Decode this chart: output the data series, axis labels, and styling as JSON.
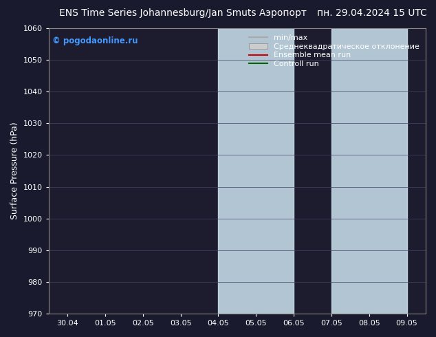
{
  "title_left": "ENS Time Series Johannesburg/Jan Smuts Аэропорт",
  "title_right": "пн. 29.04.2024 15 UTC",
  "ylabel": "Surface Pressure (hPa)",
  "copyright": "© pogodaonline.ru",
  "ylim": [
    970,
    1060
  ],
  "yticks": [
    970,
    980,
    990,
    1000,
    1010,
    1020,
    1030,
    1040,
    1050,
    1060
  ],
  "xtick_labels": [
    "30.04",
    "01.05",
    "02.05",
    "03.05",
    "04.05",
    "05.05",
    "06.05",
    "07.05",
    "08.05",
    "09.05"
  ],
  "shade_bands": [
    {
      "xstart": 4,
      "xend": 6
    },
    {
      "xstart": 7,
      "xend": 9
    }
  ],
  "shade_color": "#cde4f0",
  "legend_entries": [
    {
      "label": "min/max",
      "color": "#aaaaaa",
      "type": "line"
    },
    {
      "label": "Среднеквадратическое отклонение",
      "color": "#cccccc",
      "type": "patch"
    },
    {
      "label": "Ensemble mean run",
      "color": "#cc0000",
      "type": "line"
    },
    {
      "label": "Controll run",
      "color": "#006600",
      "type": "line"
    }
  ],
  "figure_bg_color": "#1a1a2e",
  "plot_bg_color": "#1c1c2e",
  "text_color": "#ffffff",
  "grid_color": "#444466",
  "spine_color": "#888888",
  "title_fontsize": 10,
  "axis_label_fontsize": 9,
  "tick_fontsize": 8,
  "copyright_color": "#4499ff",
  "legend_fontsize": 8
}
